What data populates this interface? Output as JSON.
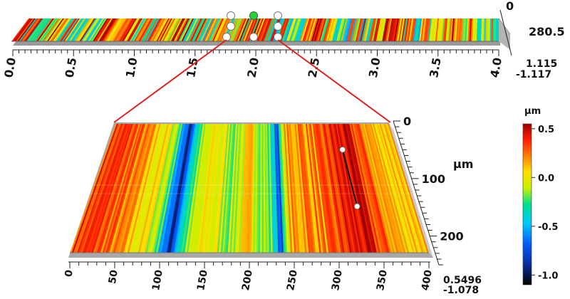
{
  "chart_data": [
    {
      "type": "surface",
      "view": "overview-strip",
      "x": {
        "range": [
          0.0,
          4.0
        ],
        "ticks": [
          "0.0",
          "0.5",
          "1.0",
          "1.5",
          "2.0",
          "2.5",
          "3.0",
          "3.5",
          "4.0"
        ]
      },
      "y": {
        "range": [
          0,
          280.5
        ],
        "ticks": [
          "0",
          "280.5"
        ]
      },
      "z": {
        "range": [
          -1.117,
          1.115
        ],
        "ticks": [
          "1.115",
          "-1.117"
        ]
      },
      "selection": {
        "x_range": [
          1.8,
          2.2
        ]
      }
    },
    {
      "type": "surface",
      "view": "zoomed-detail",
      "x": {
        "range": [
          0,
          400
        ],
        "ticks": [
          "0",
          "50",
          "100",
          "150",
          "200",
          "250",
          "300",
          "350",
          "400"
        ]
      },
      "y": {
        "range": [
          0,
          250
        ],
        "unit": "µm",
        "ticks": [
          "0",
          "100",
          "200"
        ]
      },
      "z": {
        "range": [
          -1.078,
          0.5496
        ],
        "ticks": [
          "0.5496",
          "-1.078"
        ]
      },
      "profile_marker": {
        "x_from": 325,
        "y_from": 50,
        "x_to": 330,
        "y_to": 160
      }
    }
  ],
  "colorbar": {
    "unit": "µm",
    "ticks": [
      "0.5",
      "0.0",
      "-0.5",
      "-1.0"
    ],
    "tick_values": [
      0.5,
      0.0,
      -0.5,
      -1.0
    ],
    "range": [
      -1.1,
      0.55
    ]
  },
  "colors": {
    "connector": "#e02020",
    "handle": "#ffffff",
    "handle_active": "#2ecc40",
    "colormap": [
      "#000000",
      "#0a2a9a",
      "#0060ff",
      "#00c8ff",
      "#00e090",
      "#c8f000",
      "#ffe000",
      "#ff8000",
      "#ff2000",
      "#a00000"
    ]
  }
}
